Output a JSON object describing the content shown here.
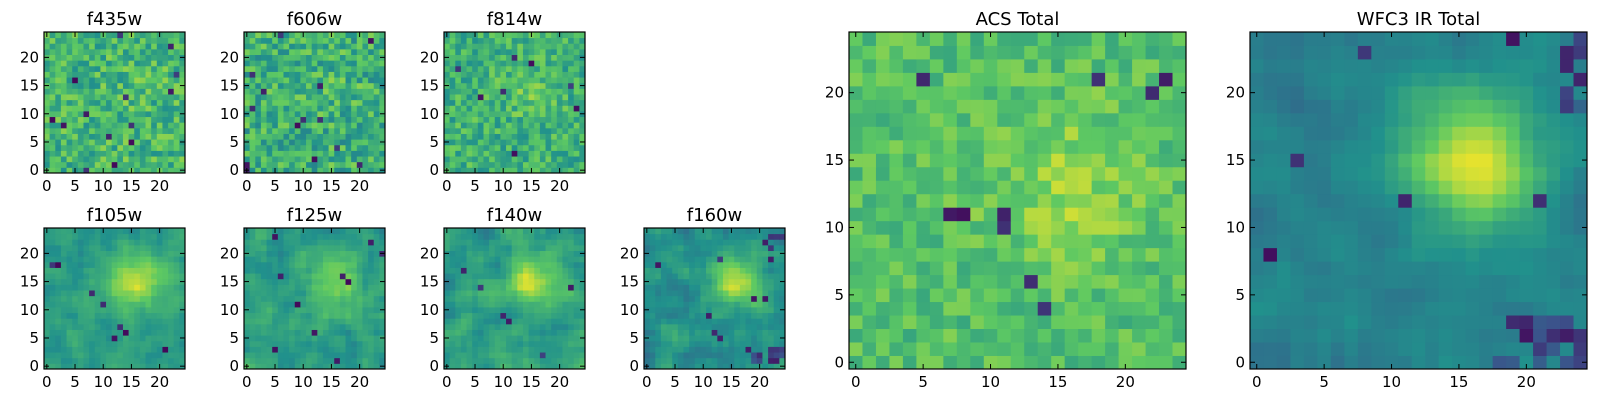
{
  "colormap": [
    "#440154",
    "#3b528b",
    "#21918c",
    "#5ec962",
    "#fde725"
  ],
  "chart_data": [
    {
      "type": "heatmap",
      "title": "f435w",
      "grid_size": 25,
      "xlim": [
        0,
        24
      ],
      "ylim": [
        0,
        24
      ],
      "xticks": [
        0,
        5,
        10,
        15,
        20
      ],
      "yticks": [
        0,
        5,
        10,
        15,
        20
      ],
      "pattern": "noise",
      "background_level": 0.66,
      "noise": 0.17,
      "peak": {
        "x": 16,
        "y": 15,
        "sigma": 3,
        "amp": 0.02
      },
      "dark_pixels": 14
    },
    {
      "type": "heatmap",
      "title": "f606w",
      "grid_size": 25,
      "xlim": [
        0,
        24
      ],
      "ylim": [
        0,
        24
      ],
      "xticks": [
        0,
        5,
        10,
        15,
        20
      ],
      "yticks": [
        0,
        5,
        10,
        15,
        20
      ],
      "pattern": "noise",
      "background_level": 0.63,
      "noise": 0.18,
      "peak": {
        "x": 16,
        "y": 15,
        "sigma": 3,
        "amp": 0.03
      },
      "dark_pixels": 14
    },
    {
      "type": "heatmap",
      "title": "f814w",
      "grid_size": 25,
      "xlim": [
        0,
        24
      ],
      "ylim": [
        0,
        24
      ],
      "xticks": [
        0,
        5,
        10,
        15,
        20
      ],
      "yticks": [
        0,
        5,
        10,
        15,
        20
      ],
      "pattern": "noise",
      "background_level": 0.64,
      "noise": 0.15,
      "peak": {
        "x": 15,
        "y": 14,
        "sigma": 3,
        "amp": 0.12
      },
      "dark_pixels": 8
    },
    {
      "type": "heatmap",
      "title": "f105w",
      "grid_size": 25,
      "xlim": [
        0,
        24
      ],
      "ylim": [
        0,
        24
      ],
      "xticks": [
        0,
        5,
        10,
        15,
        20
      ],
      "yticks": [
        0,
        5,
        10,
        15,
        20
      ],
      "pattern": "smooth",
      "background_level": 0.55,
      "noise": 0.09,
      "peak": {
        "x": 16,
        "y": 15,
        "sigma": 3.5,
        "amp": 0.32
      },
      "dark_pixels": 8
    },
    {
      "type": "heatmap",
      "title": "f125w",
      "grid_size": 25,
      "xlim": [
        0,
        24
      ],
      "ylim": [
        0,
        24
      ],
      "xticks": [
        0,
        5,
        10,
        15,
        20
      ],
      "yticks": [
        0,
        5,
        10,
        15,
        20
      ],
      "pattern": "smooth",
      "background_level": 0.55,
      "noise": 0.1,
      "peak": {
        "x": 16,
        "y": 15,
        "sigma": 3.5,
        "amp": 0.28
      },
      "dark_pixels": 10
    },
    {
      "type": "heatmap",
      "title": "f140w",
      "grid_size": 25,
      "xlim": [
        0,
        24
      ],
      "ylim": [
        0,
        24
      ],
      "xticks": [
        0,
        5,
        10,
        15,
        20
      ],
      "yticks": [
        0,
        5,
        10,
        15,
        20
      ],
      "pattern": "smooth",
      "background_level": 0.55,
      "noise": 0.1,
      "peak": {
        "x": 15,
        "y": 15,
        "sigma": 3,
        "amp": 0.38
      },
      "dark_pixels": 6
    },
    {
      "type": "heatmap",
      "title": "f160w",
      "grid_size": 25,
      "xlim": [
        0,
        24
      ],
      "ylim": [
        0,
        24
      ],
      "xticks": [
        0,
        5,
        10,
        15,
        20
      ],
      "yticks": [
        0,
        5,
        10,
        15,
        20
      ],
      "pattern": "smooth",
      "background_level": 0.5,
      "noise": 0.1,
      "peak": {
        "x": 16,
        "y": 15,
        "sigma": 3,
        "amp": 0.42
      },
      "dark_pixels": 8,
      "dark_corner": "bottom-right"
    },
    {
      "type": "heatmap",
      "title": "ACS Total",
      "grid_size": 25,
      "xlim": [
        0,
        24
      ],
      "ylim": [
        0,
        24
      ],
      "xticks": [
        0,
        5,
        10,
        15,
        20
      ],
      "yticks": [
        0,
        5,
        10,
        15,
        20
      ],
      "pattern": "noise",
      "background_level": 0.7,
      "noise": 0.11,
      "peak": {
        "x": 16,
        "y": 13,
        "sigma": 4,
        "amp": 0.14
      },
      "dark_pixels": 10
    },
    {
      "type": "heatmap",
      "title": "WFC3 IR Total",
      "grid_size": 25,
      "xlim": [
        0,
        24
      ],
      "ylim": [
        0,
        24
      ],
      "xticks": [
        0,
        5,
        10,
        15,
        20
      ],
      "yticks": [
        0,
        5,
        10,
        15,
        20
      ],
      "pattern": "smooth",
      "background_level": 0.44,
      "noise": 0.06,
      "peak": {
        "x": 16,
        "y": 15,
        "sigma": 3.5,
        "amp": 0.5
      },
      "dark_pixels": 6,
      "dark_corner": "bottom-right"
    }
  ]
}
